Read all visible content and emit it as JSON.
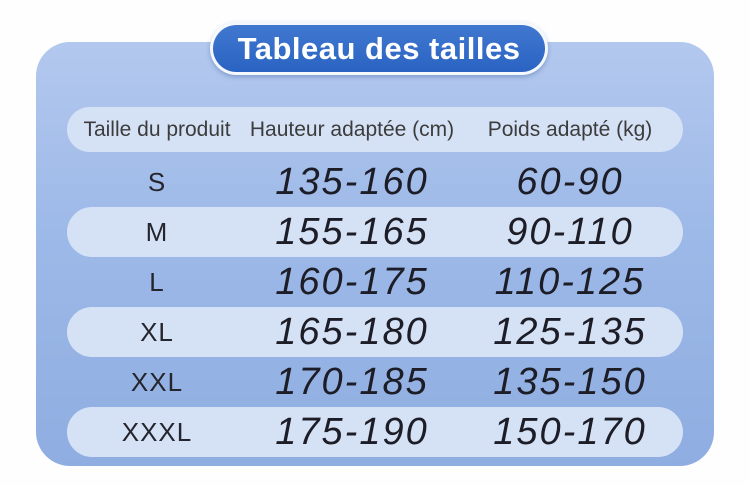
{
  "colors": {
    "badge_blue": "#2c68c5",
    "panel_blue": "#9db9e8",
    "row_pill_light": "#d5e2f6",
    "page_background": "#fefefe",
    "badge_text": "#ffffff",
    "header_text": "#3c3c3c",
    "value_text": "#1d1d27"
  },
  "chart_data": {
    "type": "table",
    "title": "Tableau des tailles",
    "columns": [
      "Taille du produit",
      "Hauteur adaptée (cm)",
      "Poids adapté (kg)"
    ],
    "rows": [
      {
        "size": "S",
        "height_cm": "135-160",
        "weight_kg": "60-90"
      },
      {
        "size": "M",
        "height_cm": "155-165",
        "weight_kg": "90-110"
      },
      {
        "size": "L",
        "height_cm": "160-175",
        "weight_kg": "110-125"
      },
      {
        "size": "XL",
        "height_cm": "165-180",
        "weight_kg": "125-135"
      },
      {
        "size": "XXL",
        "height_cm": "170-185",
        "weight_kg": "135-150"
      },
      {
        "size": "XXXL",
        "height_cm": "175-190",
        "weight_kg": "150-170"
      }
    ]
  }
}
